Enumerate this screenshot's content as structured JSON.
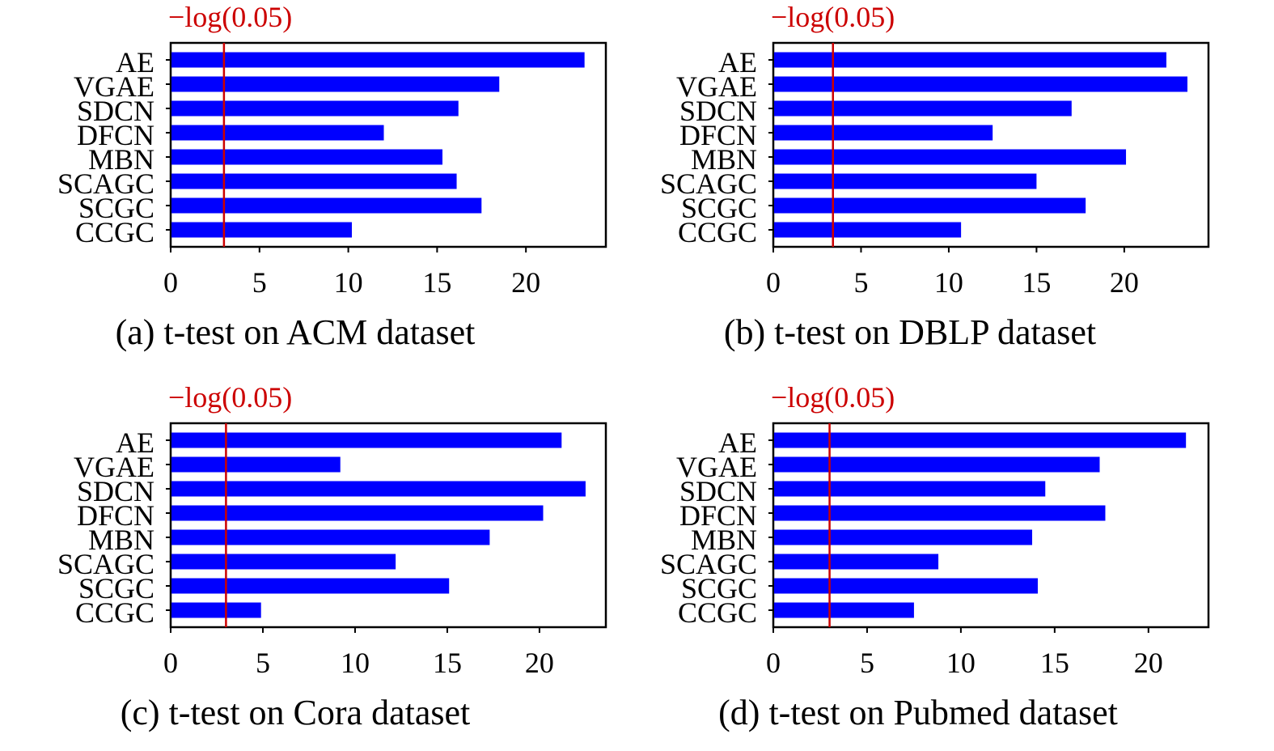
{
  "chart_data": [
    {
      "type": "bar",
      "orientation": "horizontal",
      "caption": "(a) t-test on ACM dataset",
      "threshold_label": "−log(0.05)",
      "threshold": 3.0,
      "categories": [
        "AE",
        "VGAE",
        "SDCN",
        "DFCN",
        "MBN",
        "SCAGC",
        "SCGC",
        "CCGC"
      ],
      "values": [
        23.3,
        18.5,
        16.2,
        12.0,
        15.3,
        16.1,
        17.5,
        10.2
      ],
      "xticks": [
        "0",
        "5",
        "10",
        "15",
        "20"
      ],
      "xlim": [
        0,
        24.5
      ],
      "colors": {
        "bar": "#0000ff",
        "threshold": "#cc0000"
      }
    },
    {
      "type": "bar",
      "orientation": "horizontal",
      "caption": "(b) t-test on DBLP dataset",
      "threshold_label": "−log(0.05)",
      "threshold": 3.4,
      "categories": [
        "AE",
        "VGAE",
        "SDCN",
        "DFCN",
        "MBN",
        "SCAGC",
        "SCGC",
        "CCGC"
      ],
      "values": [
        22.4,
        23.6,
        17.0,
        12.5,
        20.1,
        15.0,
        17.8,
        10.7
      ],
      "xticks": [
        "0",
        "5",
        "10",
        "15",
        "20"
      ],
      "xlim": [
        0,
        24.8
      ],
      "colors": {
        "bar": "#0000ff",
        "threshold": "#cc0000"
      }
    },
    {
      "type": "bar",
      "orientation": "horizontal",
      "caption": "(c) t-test on Cora dataset",
      "threshold_label": "−log(0.05)",
      "threshold": 3.0,
      "categories": [
        "AE",
        "VGAE",
        "SDCN",
        "DFCN",
        "MBN",
        "SCAGC",
        "SCGC",
        "CCGC"
      ],
      "values": [
        21.2,
        9.2,
        22.5,
        20.2,
        17.3,
        12.2,
        15.1,
        4.9
      ],
      "xticks": [
        "0",
        "5",
        "10",
        "15",
        "20"
      ],
      "xlim": [
        0,
        23.6
      ],
      "colors": {
        "bar": "#0000ff",
        "threshold": "#cc0000"
      }
    },
    {
      "type": "bar",
      "orientation": "horizontal",
      "caption": "(d) t-test on Pubmed dataset",
      "threshold_label": "−log(0.05)",
      "threshold": 3.0,
      "categories": [
        "AE",
        "VGAE",
        "SDCN",
        "DFCN",
        "MBN",
        "SCAGC",
        "SCGC",
        "CCGC"
      ],
      "values": [
        22.0,
        17.4,
        14.5,
        17.7,
        13.8,
        8.8,
        14.1,
        7.5
      ],
      "xticks": [
        "0",
        "5",
        "10",
        "15",
        "20"
      ],
      "xlim": [
        0,
        23.2
      ],
      "colors": {
        "bar": "#0000ff",
        "threshold": "#cc0000"
      }
    }
  ]
}
